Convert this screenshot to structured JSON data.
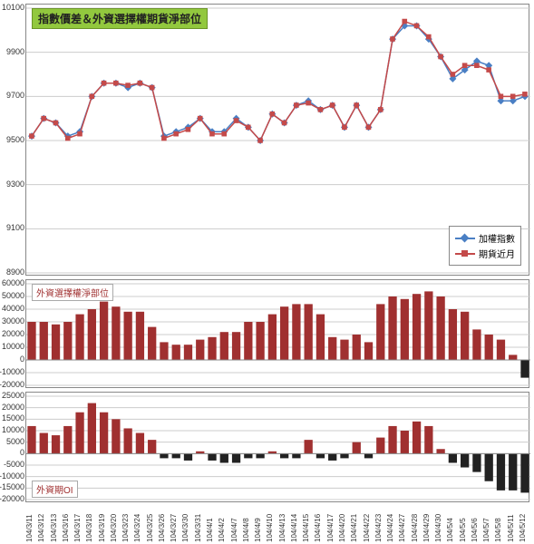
{
  "main_title": "指數價差＆外資選擇權期貨淨部位",
  "panel2_title": "外資選擇權淨部位",
  "panel3_title": "外資期OI",
  "legend": {
    "series1_label": "加權指數",
    "series2_label": "期貨近月"
  },
  "colors": {
    "title_bg": "#92c83e",
    "s1_line": "#4a7fc4",
    "s1_marker": "#4a7fc4",
    "s2_line": "#c44a4a",
    "s2_marker": "#c44a4a",
    "bar_pos": "#a03030",
    "bar_neg": "#222222",
    "grid": "#cccccc",
    "marker_shape_s1": "diamond",
    "marker_shape_s2": "square"
  },
  "dates": [
    "104/3/11",
    "104/3/12",
    "104/3/13",
    "104/3/16",
    "104/3/17",
    "104/3/18",
    "104/3/19",
    "104/3/20",
    "104/3/23",
    "104/3/24",
    "104/3/25",
    "104/3/26",
    "104/3/27",
    "104/3/30",
    "104/3/31",
    "104/4/1",
    "104/4/2",
    "104/4/7",
    "104/4/8",
    "104/4/9",
    "104/4/10",
    "104/4/13",
    "104/4/14",
    "104/4/15",
    "104/4/16",
    "104/4/17",
    "104/4/20",
    "104/4/21",
    "104/4/22",
    "104/4/23",
    "104/4/24",
    "104/4/27",
    "104/4/28",
    "104/4/29",
    "104/4/30",
    "104/5/4",
    "104/5/5",
    "104/5/6",
    "104/5/7",
    "104/5/8",
    "104/5/11",
    "104/5/12"
  ],
  "chart1": {
    "type": "line",
    "ylim": [
      8900,
      10100
    ],
    "yticks": [
      8900,
      9100,
      9300,
      9500,
      9700,
      9900,
      10100
    ],
    "s1": [
      9520,
      9600,
      9580,
      9520,
      9540,
      9700,
      9760,
      9760,
      9740,
      9760,
      9740,
      9520,
      9540,
      9560,
      9600,
      9540,
      9540,
      9600,
      9560,
      9500,
      9620,
      9580,
      9660,
      9680,
      9640,
      9660,
      9560,
      9660,
      9560,
      9640,
      9960,
      10020,
      10020,
      9960,
      9880,
      9780,
      9820,
      9860,
      9840,
      9680,
      9680,
      9700
    ],
    "s2": [
      9520,
      9600,
      9580,
      9510,
      9530,
      9700,
      9760,
      9760,
      9750,
      9760,
      9740,
      9510,
      9530,
      9550,
      9600,
      9530,
      9530,
      9590,
      9560,
      9500,
      9620,
      9580,
      9660,
      9670,
      9640,
      9660,
      9560,
      9660,
      9560,
      9640,
      9960,
      10040,
      10020,
      9970,
      9880,
      9800,
      9840,
      9840,
      9820,
      9700,
      9700,
      9710
    ],
    "line_width": 1.5,
    "marker_size": 4
  },
  "chart2": {
    "type": "bar",
    "ylim": [
      -20000,
      60000
    ],
    "yticks": [
      -20000,
      -10000,
      0,
      10000,
      20000,
      30000,
      40000,
      50000,
      60000
    ],
    "values": [
      30000,
      30000,
      28000,
      30000,
      36000,
      40000,
      46000,
      42000,
      38000,
      38000,
      26000,
      14000,
      12000,
      12000,
      16000,
      18000,
      22000,
      22000,
      30000,
      30000,
      36000,
      42000,
      44000,
      44000,
      36000,
      18000,
      16000,
      20000,
      14000,
      44000,
      50000,
      48000,
      52000,
      54000,
      50000,
      40000,
      38000,
      24000,
      20000,
      16000,
      4000,
      -14000
    ],
    "bar_width": 0.7
  },
  "chart3": {
    "type": "bar",
    "ylim": [
      -20000,
      25000
    ],
    "yticks": [
      -20000,
      -15000,
      -10000,
      -5000,
      0,
      5000,
      10000,
      15000,
      20000,
      25000
    ],
    "values": [
      12000,
      9000,
      8000,
      12000,
      18000,
      22000,
      18000,
      15000,
      11000,
      9000,
      6000,
      -2000,
      -2000,
      -3000,
      1000,
      -3000,
      -4000,
      -4000,
      -2000,
      -2000,
      1000,
      -2000,
      -2000,
      6000,
      -2000,
      -3000,
      -2000,
      5000,
      -2000,
      7000,
      12000,
      10000,
      14000,
      12000,
      2000,
      -4000,
      -6000,
      -8000,
      -12000,
      -16000,
      -16000,
      -17000
    ],
    "bar_width": 0.7
  },
  "fontsize": {
    "title": 12,
    "sub": 10,
    "axis": 9
  }
}
